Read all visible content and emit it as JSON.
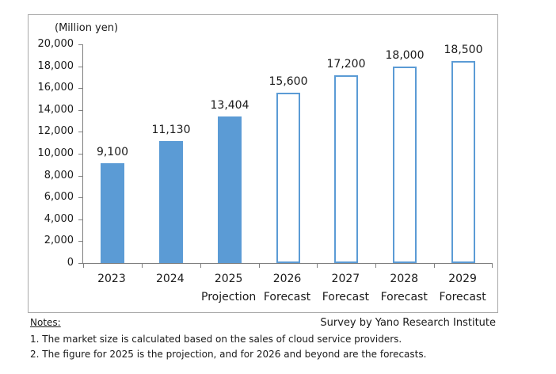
{
  "chart_data": {
    "type": "bar",
    "unit_label": "(Million yen)",
    "categories": [
      {
        "year": "2023",
        "sub": ""
      },
      {
        "year": "2024",
        "sub": ""
      },
      {
        "year": "2025",
        "sub": "Projection"
      },
      {
        "year": "2026",
        "sub": "Forecast"
      },
      {
        "year": "2027",
        "sub": "Forecast"
      },
      {
        "year": "2028",
        "sub": "Forecast"
      },
      {
        "year": "2029",
        "sub": "Forecast"
      }
    ],
    "values": [
      9100,
      11130,
      13404,
      15600,
      17200,
      18000,
      18500
    ],
    "value_labels": [
      "9,100",
      "11,130",
      "13,404",
      "15,600",
      "17,200",
      "18,000",
      "18,500"
    ],
    "bar_styles": [
      "solid",
      "solid",
      "solid",
      "outline",
      "outline",
      "outline",
      "outline"
    ],
    "ylim": [
      0,
      20000
    ],
    "ytick_step": 2000,
    "yticks": [
      "20,000",
      "18,000",
      "16,000",
      "14,000",
      "12,000",
      "10,000",
      "8,000",
      "6,000",
      "4,000",
      "2,000",
      "0"
    ],
    "bar_color": "#5B9BD5",
    "outline_fill": "#FFFFFF",
    "axis_color": "#7F7F7F",
    "grid": false,
    "legend": "none"
  },
  "notes": {
    "heading": "Notes:",
    "survey": "Survey by Yano Research Institute",
    "items": [
      "1. The market size is calculated based on the sales of cloud service providers.",
      "2. The figure for 2025 is the projection, and for 2026 and beyond are the forecasts."
    ]
  }
}
